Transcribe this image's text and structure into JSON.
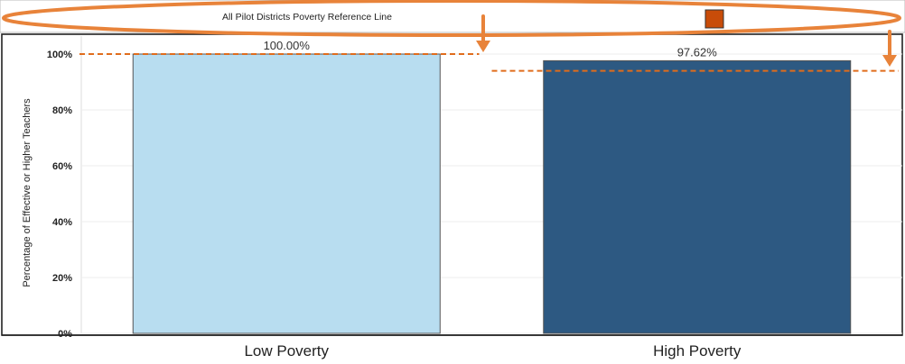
{
  "legend": {
    "label": "All Pilot Districts Poverty Reference Line",
    "swatch_color": "#C84C09"
  },
  "annotation_color": "#E8833A",
  "chart_data": {
    "type": "bar",
    "categories": [
      "Low Poverty",
      "High Poverty"
    ],
    "values": [
      100.0,
      97.62
    ],
    "data_labels": [
      "100.00%",
      "97.62%"
    ],
    "bar_colors": [
      "#B8DDF0",
      "#2D5982"
    ],
    "reference_line": {
      "values": [
        100.0,
        94.0
      ],
      "color": "#E06C1C",
      "style": "dashed"
    },
    "ylabel": "Percentage of Effective or Higher Teachers",
    "xlabel": "",
    "ylim": [
      0,
      100
    ],
    "yticks": [
      0,
      20,
      40,
      60,
      80,
      100
    ],
    "ytick_labels": [
      "0%",
      "20%",
      "40%",
      "60%",
      "80%",
      "100%"
    ],
    "grid": true
  }
}
